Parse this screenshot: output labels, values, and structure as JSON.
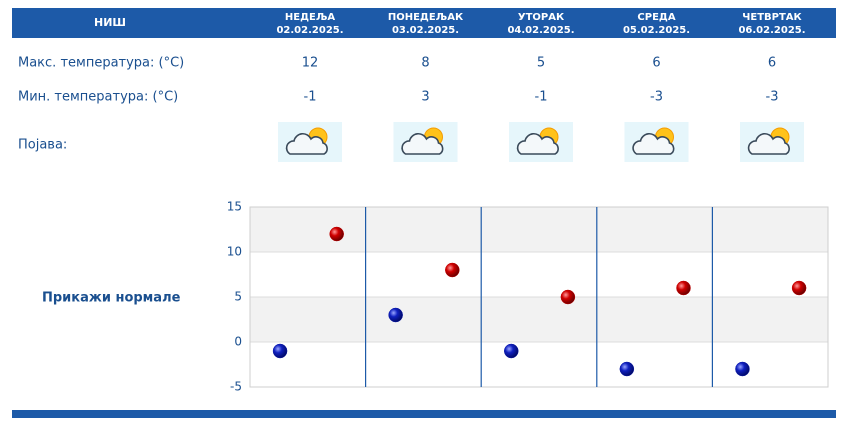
{
  "header": {
    "city": "НИШ",
    "days": [
      {
        "name": "НЕДЕЉА",
        "date": "02.02.2025."
      },
      {
        "name": "ПОНЕДЕЉАК",
        "date": "03.02.2025."
      },
      {
        "name": "УТОРАК",
        "date": "04.02.2025."
      },
      {
        "name": "СРЕДА",
        "date": "05.02.2025."
      },
      {
        "name": "ЧЕТВРТАК",
        "date": "06.02.2025."
      }
    ]
  },
  "rows": [
    {
      "label": "Макс. температура: (°C)"
    },
    {
      "label": "Мин. температура: (°C)"
    },
    {
      "label": "Појава:"
    }
  ],
  "link": "Прикажи нормале",
  "chart_data": {
    "type": "dot",
    "ylim": [
      -5,
      15
    ],
    "yticks": [
      -5,
      0,
      5,
      10,
      15
    ],
    "grid": true,
    "series": [
      {
        "color": "#c00000",
        "values": [
          12,
          8,
          5,
          6,
          6
        ]
      },
      {
        "color": "#0a18a8",
        "values": [
          -1,
          3,
          -1,
          -3,
          -3
        ]
      }
    ]
  }
}
